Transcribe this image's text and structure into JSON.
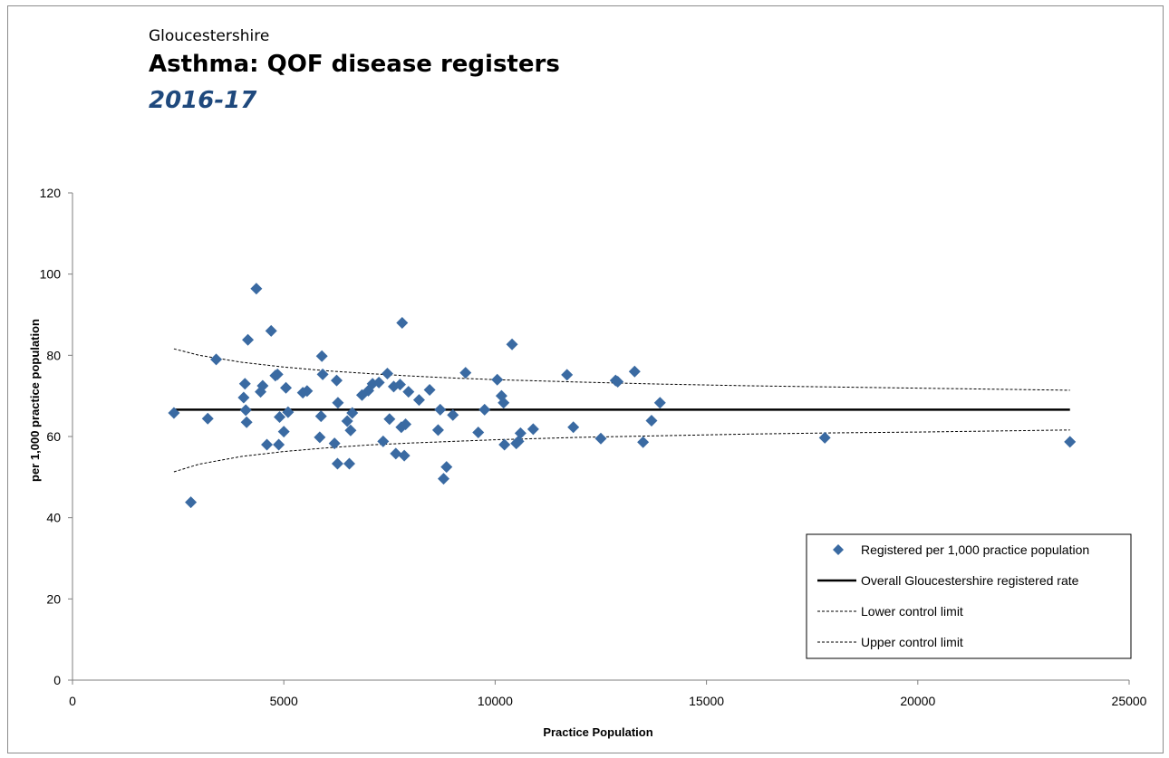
{
  "header": {
    "subtitle": "Gloucestershire",
    "title": "Asthma: QOF disease registers",
    "period": "2016-17"
  },
  "colors": {
    "marker": "#3a6aa2",
    "overall_line": "#000000",
    "control_lines": "#000000",
    "period_text": "#1f497d"
  },
  "chart_data": {
    "type": "scatter",
    "xlabel": "Practice Population",
    "ylabel": "per 1,000 practice population",
    "xlim": [
      0,
      25000
    ],
    "ylim": [
      0,
      120
    ],
    "x_ticks": [
      0,
      5000,
      10000,
      15000,
      20000,
      25000
    ],
    "y_ticks": [
      0,
      20,
      40,
      60,
      80,
      100,
      120
    ],
    "grid": false,
    "legend_position": "bottom-right",
    "legend": [
      "Registered per 1,000 practice population",
      "Overall Gloucestershire registered rate",
      "Lower control limit",
      "Upper control limit"
    ],
    "overall_rate": 66.6,
    "scatter_points": [
      {
        "x": 2400,
        "y": 65.8
      },
      {
        "x": 2800,
        "y": 43.8
      },
      {
        "x": 3200,
        "y": 64.4
      },
      {
        "x": 3400,
        "y": 79.0
      },
      {
        "x": 4050,
        "y": 69.6
      },
      {
        "x": 4080,
        "y": 73.0
      },
      {
        "x": 4100,
        "y": 66.5
      },
      {
        "x": 4120,
        "y": 63.5
      },
      {
        "x": 4150,
        "y": 83.8
      },
      {
        "x": 4350,
        "y": 96.4
      },
      {
        "x": 4450,
        "y": 71.0
      },
      {
        "x": 4500,
        "y": 72.5
      },
      {
        "x": 4600,
        "y": 58.0
      },
      {
        "x": 4700,
        "y": 86.0
      },
      {
        "x": 4800,
        "y": 75.0
      },
      {
        "x": 4850,
        "y": 75.3
      },
      {
        "x": 4880,
        "y": 58.0
      },
      {
        "x": 4900,
        "y": 64.8
      },
      {
        "x": 5000,
        "y": 61.2
      },
      {
        "x": 5050,
        "y": 72.0
      },
      {
        "x": 5100,
        "y": 66.0
      },
      {
        "x": 5450,
        "y": 70.8
      },
      {
        "x": 5550,
        "y": 71.2
      },
      {
        "x": 5850,
        "y": 59.8
      },
      {
        "x": 5880,
        "y": 65.0
      },
      {
        "x": 5900,
        "y": 79.8
      },
      {
        "x": 5920,
        "y": 75.3
      },
      {
        "x": 6200,
        "y": 58.3
      },
      {
        "x": 6250,
        "y": 73.8
      },
      {
        "x": 6270,
        "y": 53.3
      },
      {
        "x": 6280,
        "y": 68.3
      },
      {
        "x": 6500,
        "y": 63.8
      },
      {
        "x": 6550,
        "y": 53.3
      },
      {
        "x": 6580,
        "y": 61.5
      },
      {
        "x": 6620,
        "y": 65.8
      },
      {
        "x": 6850,
        "y": 70.2
      },
      {
        "x": 7000,
        "y": 71.3
      },
      {
        "x": 7100,
        "y": 73.0
      },
      {
        "x": 7250,
        "y": 73.3
      },
      {
        "x": 7350,
        "y": 58.8
      },
      {
        "x": 7450,
        "y": 75.5
      },
      {
        "x": 7500,
        "y": 64.3
      },
      {
        "x": 7600,
        "y": 72.3
      },
      {
        "x": 7650,
        "y": 55.8
      },
      {
        "x": 7750,
        "y": 72.8
      },
      {
        "x": 7780,
        "y": 62.3
      },
      {
        "x": 7800,
        "y": 88.0
      },
      {
        "x": 7850,
        "y": 55.3
      },
      {
        "x": 7880,
        "y": 63.0
      },
      {
        "x": 7950,
        "y": 71.0
      },
      {
        "x": 8200,
        "y": 69.0
      },
      {
        "x": 8450,
        "y": 71.5
      },
      {
        "x": 8650,
        "y": 61.6
      },
      {
        "x": 8700,
        "y": 66.6
      },
      {
        "x": 8780,
        "y": 49.6
      },
      {
        "x": 8850,
        "y": 52.5
      },
      {
        "x": 9000,
        "y": 65.3
      },
      {
        "x": 9300,
        "y": 75.7
      },
      {
        "x": 9600,
        "y": 61.0
      },
      {
        "x": 9750,
        "y": 66.6
      },
      {
        "x": 10050,
        "y": 74.0
      },
      {
        "x": 10150,
        "y": 70.0
      },
      {
        "x": 10200,
        "y": 68.3
      },
      {
        "x": 10220,
        "y": 58.0
      },
      {
        "x": 10400,
        "y": 82.7
      },
      {
        "x": 10500,
        "y": 58.3
      },
      {
        "x": 10550,
        "y": 58.8
      },
      {
        "x": 10600,
        "y": 60.8
      },
      {
        "x": 10900,
        "y": 61.8
      },
      {
        "x": 11700,
        "y": 75.2
      },
      {
        "x": 11850,
        "y": 62.3
      },
      {
        "x": 12500,
        "y": 59.5
      },
      {
        "x": 12850,
        "y": 73.8
      },
      {
        "x": 12900,
        "y": 73.5
      },
      {
        "x": 13300,
        "y": 76.0
      },
      {
        "x": 13500,
        "y": 58.6
      },
      {
        "x": 13700,
        "y": 63.9
      },
      {
        "x": 13900,
        "y": 68.3
      },
      {
        "x": 17800,
        "y": 59.7
      },
      {
        "x": 23600,
        "y": 58.7
      }
    ],
    "control_limit_x": [
      2400,
      3000,
      4000,
      5000,
      6000,
      7000,
      8000,
      9000,
      10000,
      12000,
      14000,
      16000,
      18000,
      20000,
      23600
    ],
    "lower_control_limit": [
      51.3,
      53.2,
      55.1,
      56.3,
      57.2,
      57.9,
      58.4,
      58.8,
      59.2,
      59.8,
      60.2,
      60.6,
      60.9,
      61.1,
      61.6
    ],
    "upper_control_limit": [
      81.6,
      80.0,
      78.3,
      77.1,
      76.2,
      75.5,
      74.9,
      74.4,
      74.0,
      73.4,
      72.9,
      72.5,
      72.2,
      71.9,
      71.4
    ]
  }
}
